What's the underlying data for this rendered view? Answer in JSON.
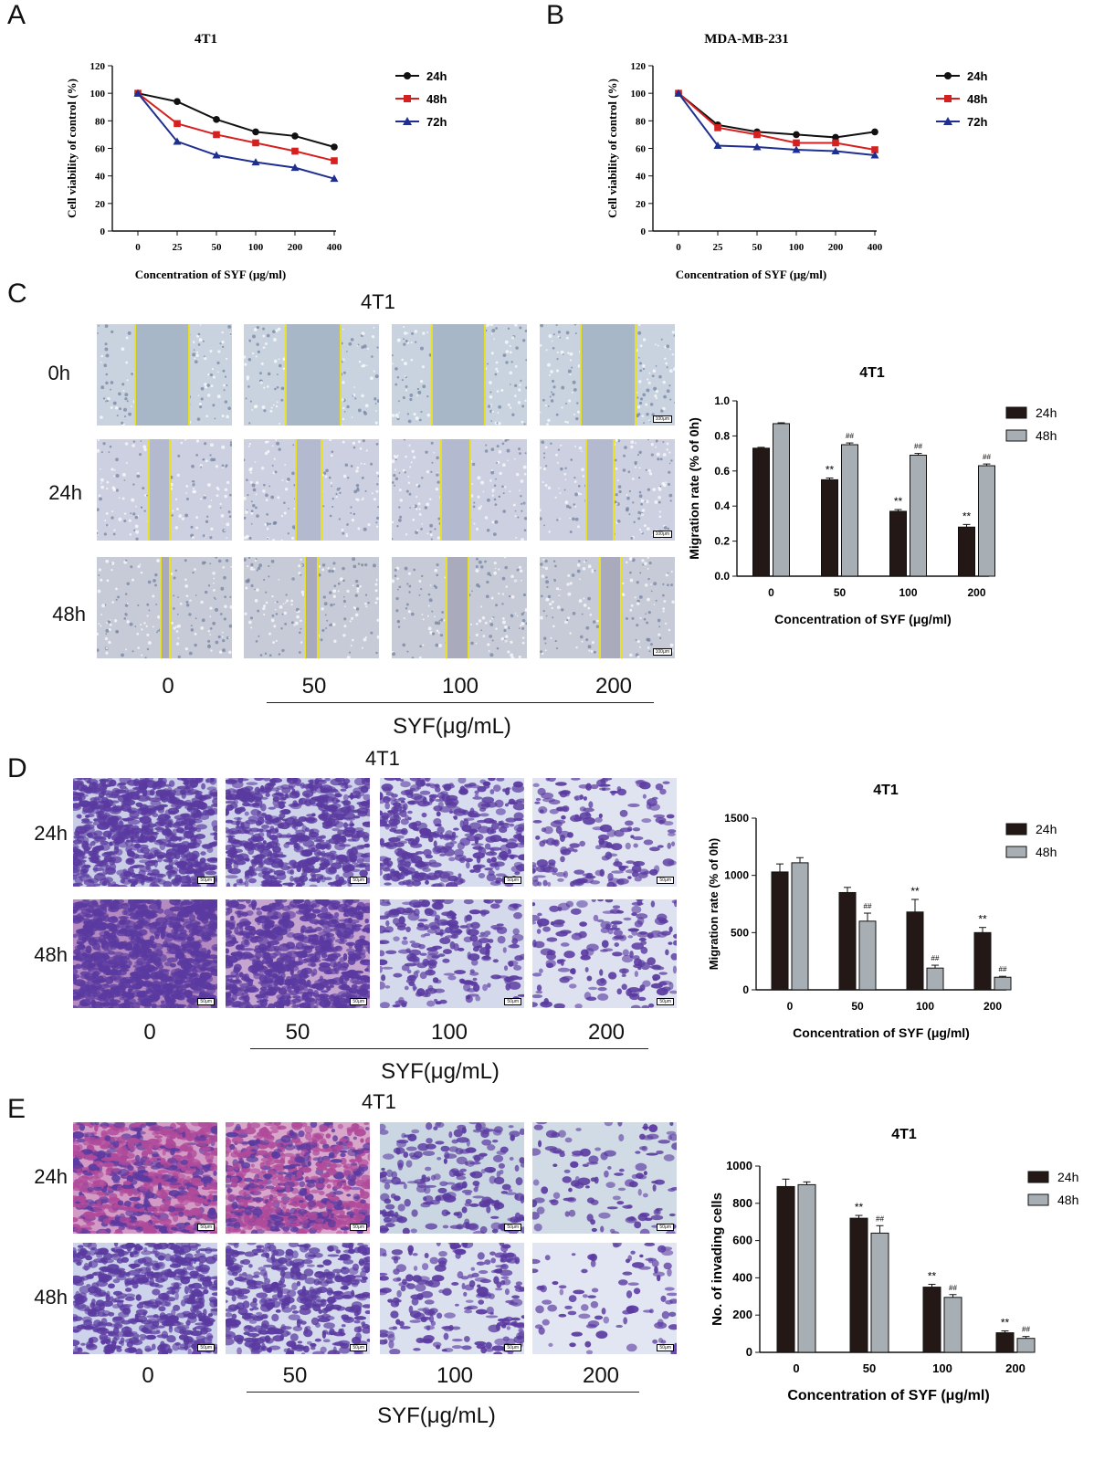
{
  "panel_labels": {
    "a": "A",
    "b": "B",
    "c": "C",
    "d": "D",
    "e": "E"
  },
  "panel_c": {
    "group_title": "4T1",
    "row_labels": [
      "0h",
      "24h",
      "48h"
    ],
    "concentrations": [
      "0",
      "50",
      "100",
      "200"
    ],
    "syf_label": "SYF(μg/mL)",
    "scale_bar": "100μm"
  },
  "panel_d": {
    "group_title": "4T1",
    "row_labels": [
      "24h",
      "48h"
    ],
    "concentrations": [
      "0",
      "50",
      "100",
      "200"
    ],
    "syf_label": "SYF(μg/mL)",
    "scale_bar": "50μm"
  },
  "panel_e": {
    "group_title": "4T1",
    "row_labels": [
      "24h",
      "48h"
    ],
    "concentrations": [
      "0",
      "50",
      "100",
      "200"
    ],
    "syf_label": "SYF(μg/mL)",
    "scale_bar": "50μm"
  },
  "colors": {
    "black_series": "#111111",
    "red_series": "#d62020",
    "blue_series": "#1f2f8f",
    "dark_bar": "#231815",
    "gray_bar": "#a7aeb4",
    "wound_line": "#e8e020",
    "stain": "#5a3aa0"
  },
  "chart_data": [
    {
      "id": "A",
      "type": "line",
      "title": "4T1",
      "xlabel": "Concentration of SYF (μg/ml)",
      "ylabel": "Cell viability of control (%)",
      "categories": [
        "0",
        "25",
        "50",
        "100",
        "200",
        "400"
      ],
      "ylim": [
        0,
        120
      ],
      "yticks": [
        "0",
        "20",
        "40",
        "60",
        "80",
        "100",
        "120"
      ],
      "legend_position": "right",
      "series": [
        {
          "name": "24h",
          "values": [
            100,
            94,
            81,
            72,
            69,
            61
          ],
          "marker": "circle",
          "color": "#111111"
        },
        {
          "name": "48h",
          "values": [
            100,
            78,
            70,
            64,
            58,
            51
          ],
          "marker": "square",
          "color": "#d62020"
        },
        {
          "name": "72h",
          "values": [
            100,
            65,
            55,
            50,
            46,
            38
          ],
          "marker": "triangle",
          "color": "#1f2f8f"
        }
      ]
    },
    {
      "id": "B",
      "type": "line",
      "title": "MDA-MB-231",
      "xlabel": "Concentration of SYF (μg/ml)",
      "ylabel": "Cell viability of control (%)",
      "categories": [
        "0",
        "25",
        "50",
        "100",
        "200",
        "400"
      ],
      "ylim": [
        0,
        120
      ],
      "yticks": [
        "0",
        "20",
        "40",
        "60",
        "80",
        "100",
        "120"
      ],
      "legend_position": "right",
      "series": [
        {
          "name": "24h",
          "values": [
            100,
            77,
            72,
            70,
            68,
            72
          ],
          "marker": "circle",
          "color": "#111111"
        },
        {
          "name": "48h",
          "values": [
            100,
            75,
            70,
            64,
            64,
            59
          ],
          "marker": "square",
          "color": "#d62020"
        },
        {
          "name": "72h",
          "values": [
            100,
            62,
            61,
            59,
            58,
            55
          ],
          "marker": "triangle",
          "color": "#1f2f8f"
        }
      ]
    },
    {
      "id": "C",
      "type": "bar",
      "title": "4T1",
      "xlabel": "Concentration of SYF (μg/ml)",
      "ylabel": "Migration rate (% of 0h)",
      "categories": [
        "0",
        "50",
        "100",
        "200"
      ],
      "ylim": [
        0,
        1.0
      ],
      "yticks": [
        "0.0",
        "0.2",
        "0.4",
        "0.6",
        "0.8",
        "1.0"
      ],
      "legend_position": "top-right",
      "series": [
        {
          "name": "24h",
          "values": [
            0.73,
            0.55,
            0.37,
            0.28
          ],
          "errors": [
            0.005,
            0.01,
            0.01,
            0.015
          ],
          "annotations": [
            "",
            "**",
            "**",
            "**"
          ]
        },
        {
          "name": "48h",
          "values": [
            0.87,
            0.75,
            0.69,
            0.63
          ],
          "errors": [
            0.005,
            0.01,
            0.01,
            0.01
          ],
          "annotations": [
            "",
            "##",
            "##",
            "##"
          ]
        }
      ]
    },
    {
      "id": "D",
      "type": "bar",
      "title": "4T1",
      "xlabel": "Concentration of SYF (μg/ml)",
      "ylabel": "Migration rate (% of 0h)",
      "categories": [
        "0",
        "50",
        "100",
        "200"
      ],
      "ylim": [
        0,
        1500
      ],
      "yticks": [
        "0",
        "500",
        "1000",
        "1500"
      ],
      "legend_position": "top-right",
      "series": [
        {
          "name": "24h",
          "values": [
            1030,
            850,
            680,
            500
          ],
          "errors": [
            70,
            45,
            110,
            45
          ],
          "annotations": [
            "",
            "",
            "**",
            "**"
          ]
        },
        {
          "name": "48h",
          "values": [
            1110,
            600,
            190,
            110
          ],
          "errors": [
            45,
            70,
            25,
            8
          ],
          "annotations": [
            "",
            "##",
            "##",
            "##"
          ]
        }
      ]
    },
    {
      "id": "E",
      "type": "bar",
      "title": "4T1",
      "xlabel": "Concentration of SYF (μg/ml)",
      "ylabel": "No. of invading cells",
      "categories": [
        "0",
        "50",
        "100",
        "200"
      ],
      "ylim": [
        0,
        1000
      ],
      "yticks": [
        "0",
        "200",
        "400",
        "600",
        "800",
        "1000"
      ],
      "legend_position": "top-right",
      "series": [
        {
          "name": "24h",
          "values": [
            890,
            720,
            350,
            105
          ],
          "errors": [
            40,
            15,
            15,
            10
          ],
          "annotations": [
            "",
            "**",
            "**",
            "**"
          ]
        },
        {
          "name": "48h",
          "values": [
            900,
            640,
            295,
            75
          ],
          "errors": [
            15,
            40,
            15,
            10
          ],
          "annotations": [
            "",
            "##",
            "##",
            "##"
          ]
        }
      ]
    }
  ]
}
